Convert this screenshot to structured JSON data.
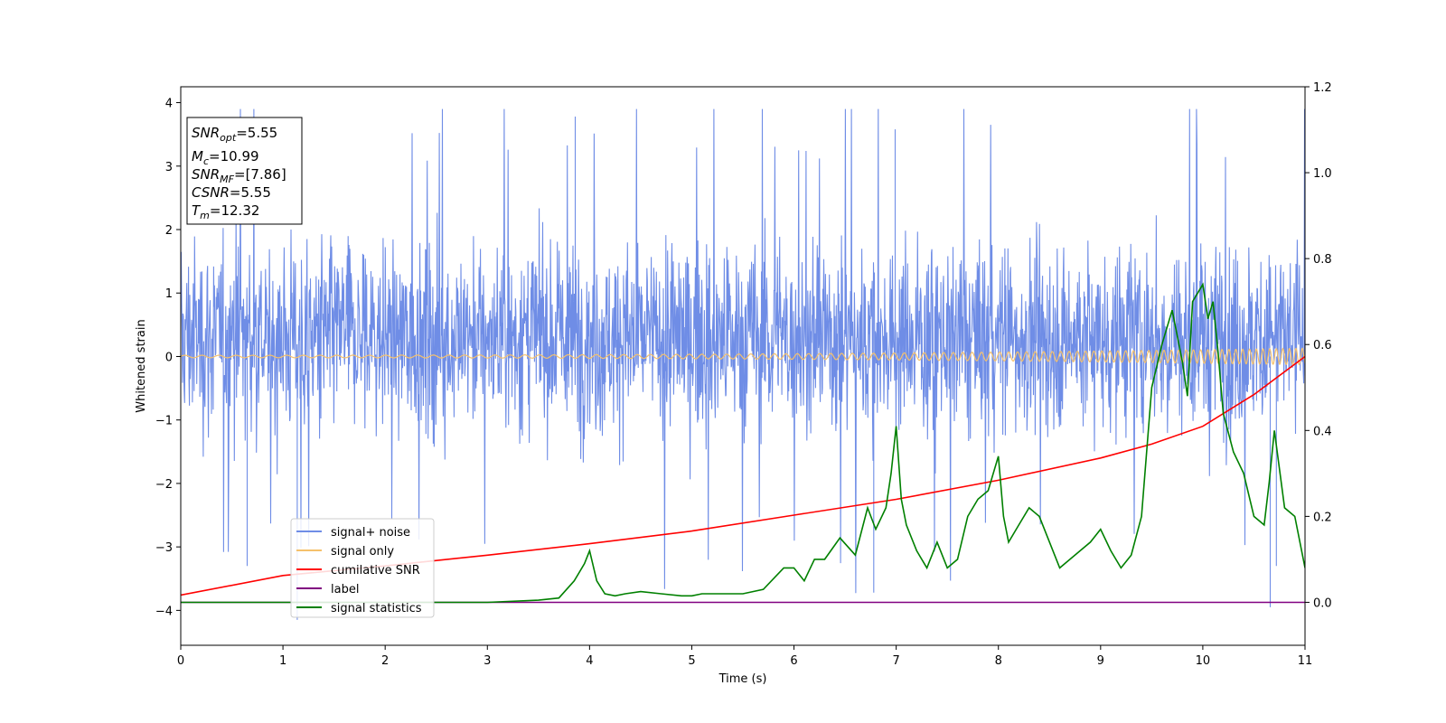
{
  "chart_data": {
    "type": "line",
    "xlabel": "Time (s)",
    "ylabel_left": "Whitened strain",
    "ylabel_right": "",
    "xlim": [
      0,
      11
    ],
    "ylim_left": [
      -4.55,
      4.25
    ],
    "ylim_right": [
      -0.1,
      1.2
    ],
    "x_ticks": [
      0,
      1,
      2,
      3,
      4,
      5,
      6,
      7,
      8,
      9,
      10,
      11
    ],
    "x_tick_labels": [
      "0",
      "1",
      "2",
      "3",
      "4",
      "5",
      "6",
      "7",
      "8",
      "9",
      "10",
      "11"
    ],
    "y_left_ticks": [
      -4,
      -3,
      -2,
      -1,
      0,
      1,
      2,
      3,
      4
    ],
    "y_left_tick_labels": [
      "−4",
      "−3",
      "−2",
      "−1",
      "0",
      "1",
      "2",
      "3",
      "4"
    ],
    "y_right_ticks": [
      0.0,
      0.2,
      0.4,
      0.6,
      0.8,
      1.0,
      1.2
    ],
    "y_right_tick_labels": [
      "0.0",
      "0.2",
      "0.4",
      "0.6",
      "0.8",
      "1.0",
      "1.2"
    ],
    "grid": false,
    "legend_position": "lower-left",
    "colors": {
      "noise": "#6f8de6",
      "signal": "#f5c16c",
      "csnr": "#ff0000",
      "label": "#800080",
      "stat": "#008000"
    },
    "annotation": {
      "lines": [
        {
          "main": "SNR",
          "sub": "opt",
          "value": "=5.55"
        },
        {
          "main": "M",
          "sub": "c",
          "value": "=10.99"
        },
        {
          "main": "SNR",
          "sub": "MF",
          "value": "=[7.86]"
        },
        {
          "main": "CSNR",
          "sub": "",
          "value": "=5.55"
        },
        {
          "main": "T",
          "sub": "m",
          "value": "=12.32"
        }
      ]
    },
    "series": [
      {
        "name": "signal+ noise",
        "axis": "left",
        "kind": "noise",
        "envelope_typical": [
          -1.6,
          2.2
        ],
        "peaks": [
          [
            1.14,
            -4.15
          ],
          [
            2.56,
            3.85
          ],
          [
            3.86,
            3.78
          ],
          [
            6.99,
            3.58
          ],
          [
            10.66,
            -3.95
          ],
          [
            10.72,
            -3.3
          ],
          [
            0.65,
            -3.3
          ],
          [
            6.78,
            -3.72
          ]
        ]
      },
      {
        "name": "signal only",
        "axis": "left",
        "kind": "chirp",
        "amplitude_start": 0.02,
        "amplitude_end": 0.13
      },
      {
        "name": "cumilative SNR",
        "axis": "left",
        "x": [
          0,
          1,
          2,
          3,
          4,
          5,
          6,
          7,
          8,
          9,
          9.5,
          10,
          10.5,
          11
        ],
        "y": [
          -3.76,
          -3.45,
          -3.3,
          -3.13,
          -2.95,
          -2.75,
          -2.5,
          -2.25,
          -1.95,
          -1.6,
          -1.38,
          -1.1,
          -0.6,
          0.0
        ]
      },
      {
        "name": "label",
        "axis": "right",
        "x": [
          0,
          11
        ],
        "y": [
          0.0,
          0.0
        ]
      },
      {
        "name": "signal statistics",
        "axis": "right",
        "x": [
          0,
          0.5,
          1.0,
          1.5,
          2.0,
          2.5,
          3.0,
          3.5,
          3.7,
          3.85,
          3.95,
          4.0,
          4.07,
          4.15,
          4.25,
          4.35,
          4.5,
          4.7,
          4.9,
          5.0,
          5.1,
          5.3,
          5.5,
          5.7,
          5.9,
          6.0,
          6.1,
          6.2,
          6.3,
          6.45,
          6.6,
          6.72,
          6.8,
          6.9,
          6.95,
          7.0,
          7.05,
          7.1,
          7.2,
          7.3,
          7.4,
          7.5,
          7.6,
          7.7,
          7.8,
          7.9,
          8.0,
          8.05,
          8.1,
          8.2,
          8.3,
          8.4,
          8.5,
          8.6,
          8.7,
          8.8,
          8.9,
          9.0,
          9.1,
          9.2,
          9.3,
          9.4,
          9.5,
          9.6,
          9.7,
          9.8,
          9.85,
          9.9,
          9.95,
          10.0,
          10.05,
          10.1,
          10.15,
          10.2,
          10.3,
          10.4,
          10.5,
          10.6,
          10.65,
          10.7,
          10.8,
          10.9,
          11.0
        ],
        "y": [
          0.0,
          0.0,
          0.0,
          0.0,
          0.0,
          0.0,
          0.0,
          0.005,
          0.01,
          0.05,
          0.09,
          0.12,
          0.05,
          0.02,
          0.015,
          0.02,
          0.025,
          0.02,
          0.015,
          0.015,
          0.02,
          0.02,
          0.02,
          0.03,
          0.08,
          0.08,
          0.05,
          0.1,
          0.1,
          0.15,
          0.11,
          0.22,
          0.17,
          0.22,
          0.3,
          0.41,
          0.24,
          0.18,
          0.12,
          0.08,
          0.14,
          0.08,
          0.1,
          0.2,
          0.24,
          0.26,
          0.34,
          0.2,
          0.14,
          0.18,
          0.22,
          0.2,
          0.14,
          0.08,
          0.1,
          0.12,
          0.14,
          0.17,
          0.12,
          0.08,
          0.11,
          0.2,
          0.5,
          0.6,
          0.68,
          0.56,
          0.48,
          0.7,
          0.72,
          0.74,
          0.66,
          0.7,
          0.58,
          0.44,
          0.35,
          0.3,
          0.2,
          0.18,
          0.28,
          0.4,
          0.22,
          0.2,
          0.08
        ]
      }
    ]
  }
}
